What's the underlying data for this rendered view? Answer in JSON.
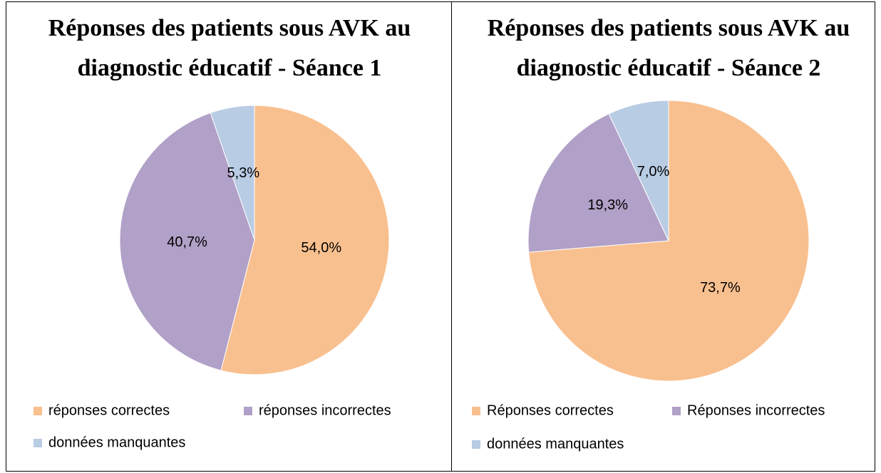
{
  "chart_data": [
    {
      "type": "pie",
      "title": "Réponses des patients sous AVK au diagnostic éducatif - Séance 1",
      "categories": [
        "réponses correctes",
        "réponses incorrectes",
        "données manquantes"
      ],
      "values": [
        54.0,
        40.7,
        5.3
      ],
      "value_labels": [
        "54,0%",
        "40,7%",
        "5,3%"
      ],
      "colors": [
        "#f9c08f",
        "#b1a0c7",
        "#b8cce4"
      ]
    },
    {
      "type": "pie",
      "title": "Réponses des patients sous AVK au diagnostic éducatif - Séance 2",
      "categories": [
        "Réponses correctes",
        "Réponses incorrectes",
        "données manquantes"
      ],
      "values": [
        73.7,
        19.3,
        7.0
      ],
      "value_labels": [
        "73,7%",
        "19,3%",
        "7,0%"
      ],
      "colors": [
        "#f9c08f",
        "#b1a0c7",
        "#b8cce4"
      ]
    }
  ]
}
